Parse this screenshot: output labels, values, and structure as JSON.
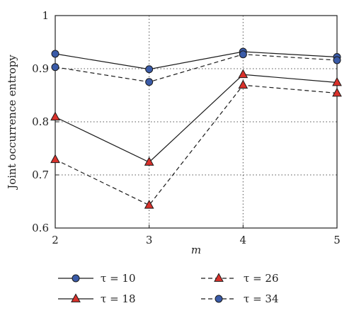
{
  "chart_data": {
    "type": "line",
    "xlabel": "m",
    "ylabel": "Joint occurrence entropy",
    "x": [
      2,
      3,
      4,
      5
    ],
    "xlim": [
      2,
      5
    ],
    "ylim": [
      0.6,
      1.0
    ],
    "xticks": [
      "2",
      "3",
      "4",
      "5"
    ],
    "yticks": [
      "0.6",
      "0.7",
      "0.8",
      "0.9",
      "1"
    ],
    "grid": true,
    "legend_position": "bottom",
    "series": [
      {
        "name": "τ = 10",
        "values": [
          0.928,
          0.899,
          0.932,
          0.922
        ],
        "line": "solid",
        "marker": "circle",
        "color": "#3a5ba8"
      },
      {
        "name": "τ = 18",
        "values": [
          0.809,
          0.724,
          0.889,
          0.874
        ],
        "line": "solid",
        "marker": "triangle",
        "color": "#d9312b"
      },
      {
        "name": "τ = 26",
        "values": [
          0.729,
          0.643,
          0.869,
          0.854
        ],
        "line": "dashed",
        "marker": "triangle",
        "color": "#d9312b"
      },
      {
        "name": "τ = 34",
        "values": [
          0.903,
          0.875,
          0.927,
          0.916
        ],
        "line": "dashed",
        "marker": "circle",
        "color": "#3a5ba8"
      }
    ]
  }
}
